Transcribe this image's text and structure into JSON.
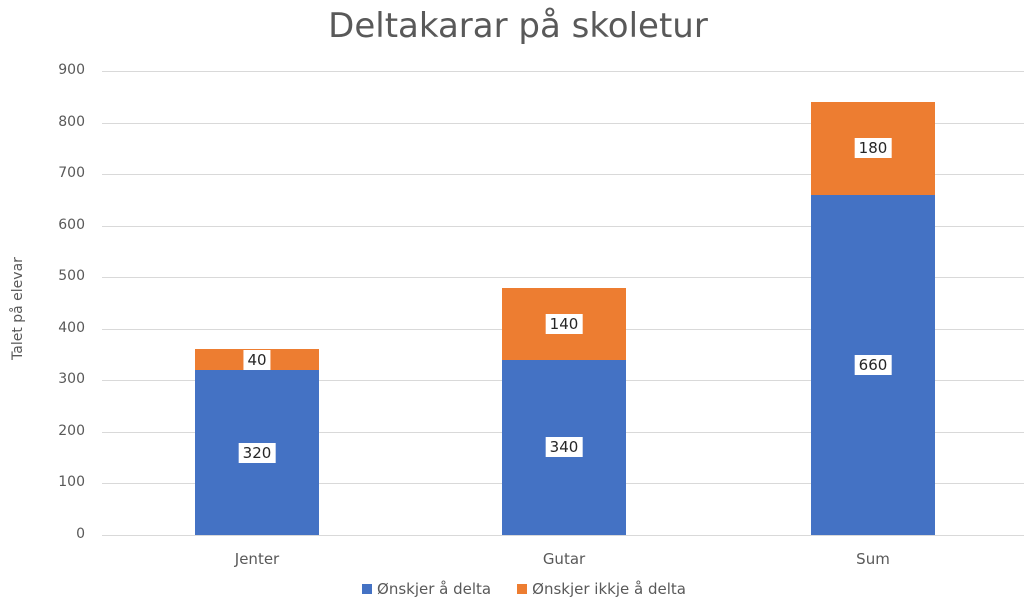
{
  "chart_data": {
    "type": "bar",
    "stacked": true,
    "title": "Deltakarar på skoletur",
    "xlabel": "",
    "ylabel": "Talet på elevar",
    "ylim": [
      0,
      900
    ],
    "yticks": [
      0,
      100,
      200,
      300,
      400,
      500,
      600,
      700,
      800,
      900
    ],
    "grid": true,
    "legend_position": "bottom",
    "categories": [
      "Jenter",
      "Gutar",
      "Sum"
    ],
    "series": [
      {
        "name": "Ønskjer å delta",
        "color": "#4472C4",
        "values": [
          320,
          340,
          660
        ]
      },
      {
        "name": "Ønskjer ikkje å delta",
        "color": "#ED7D31",
        "values": [
          40,
          140,
          180
        ]
      }
    ]
  }
}
